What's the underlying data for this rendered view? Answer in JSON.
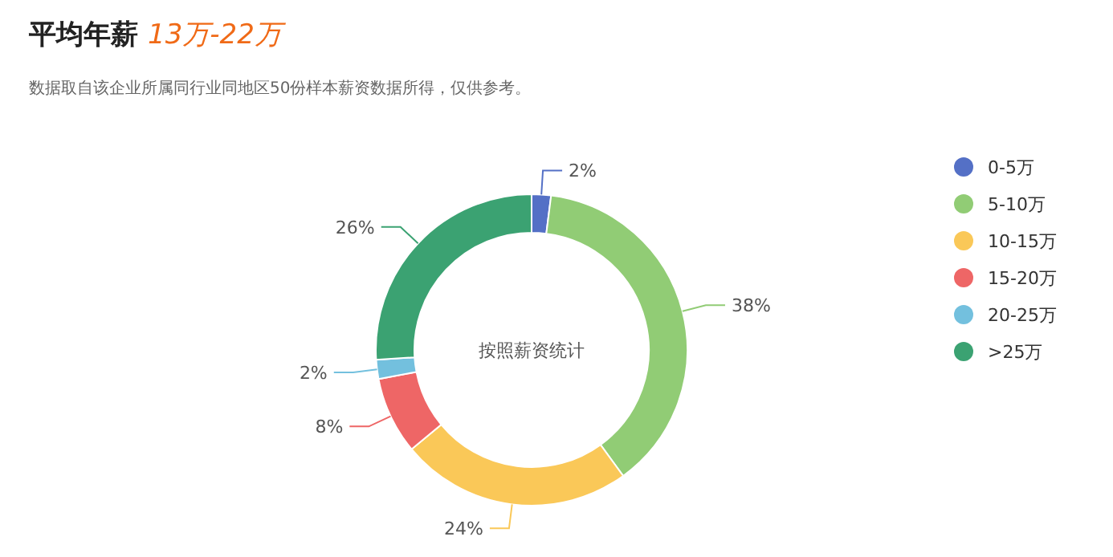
{
  "chart_data": {
    "type": "donut",
    "title": "平均年薪",
    "subtitle": "数据取自该企业所属同行业同地区50份样本薪资数据所得，仅供参考。",
    "annotations": [
      "13万-22万",
      "按照薪资统计"
    ],
    "categories": [
      "0-5万",
      "5-10万",
      "10-15万",
      "15-20万",
      "20-25万",
      ">25万"
    ],
    "values": [
      2,
      38,
      24,
      8,
      2,
      26
    ],
    "colors": [
      "#5470c6",
      "#91cc75",
      "#fac858",
      "#ee6666",
      "#73c0de",
      "#3ba272"
    ],
    "value_labels": [
      "2%",
      "38%",
      "24%",
      "8%",
      "2%",
      "26%"
    ],
    "legend": "right"
  }
}
